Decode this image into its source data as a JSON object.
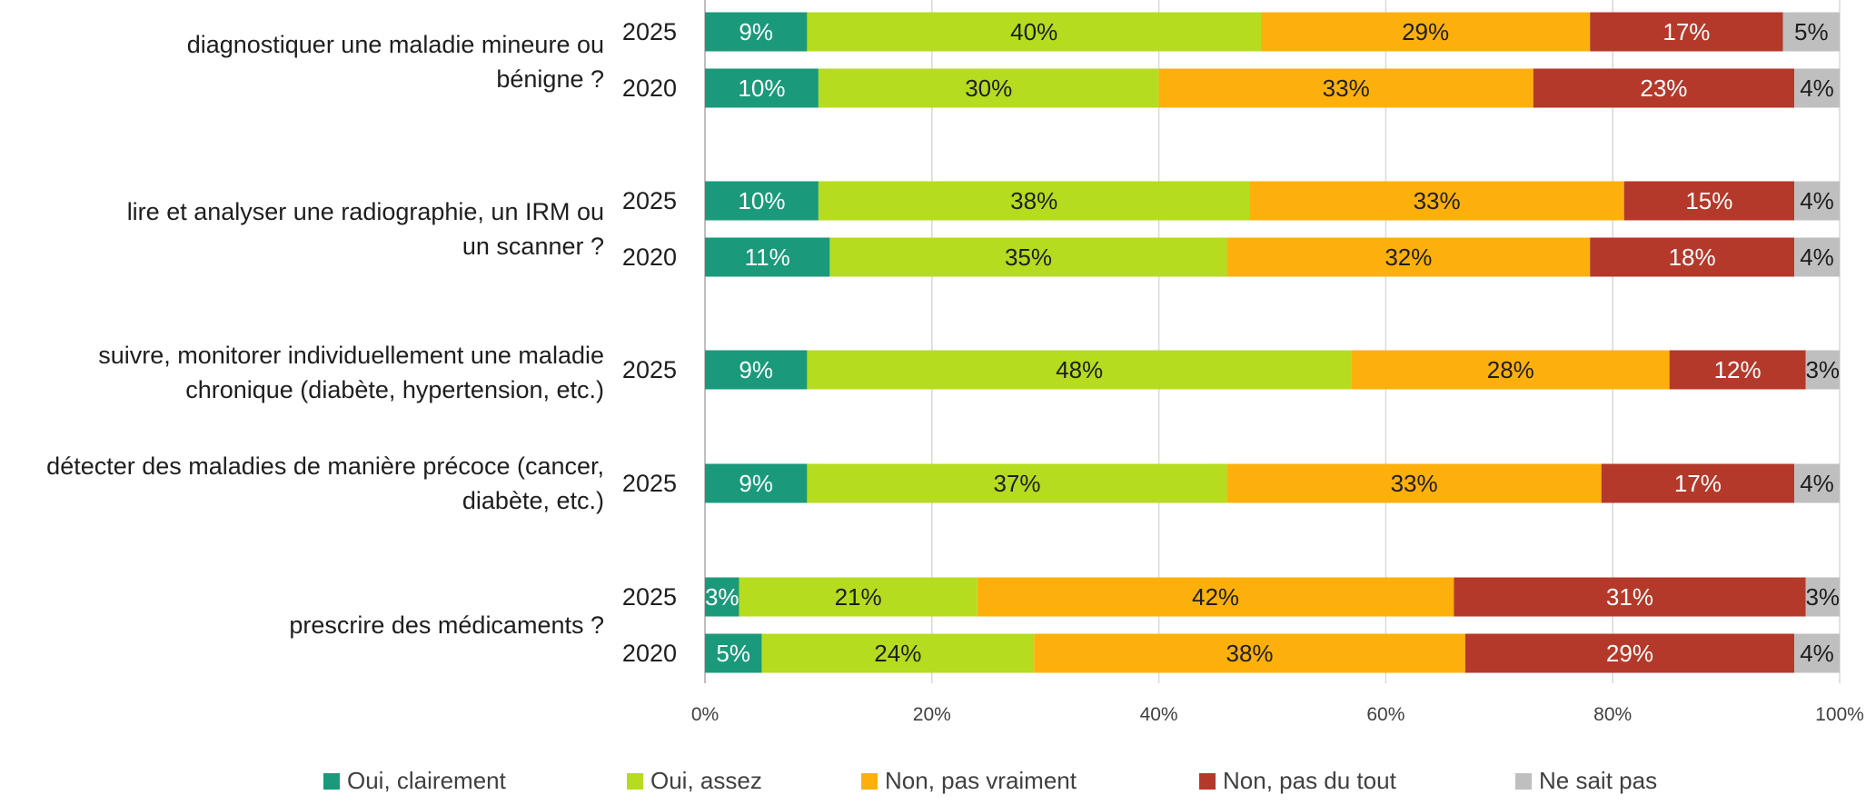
{
  "chart_data": {
    "type": "bar",
    "orientation": "horizontal",
    "stacked": true,
    "percent": true,
    "title": "",
    "xlabel": "",
    "ylabel": "",
    "xlim": [
      0,
      100
    ],
    "x_ticks": [
      "0%",
      "20%",
      "40%",
      "60%",
      "80%",
      "100%"
    ],
    "grid": "vertical",
    "legend_position": "bottom",
    "series": [
      {
        "name": "Oui, clairement",
        "color": "#1a9a7a",
        "label_color": "#ffffff"
      },
      {
        "name": "Oui, assez",
        "color": "#b5dc1f",
        "label_color": "#1e1e1e"
      },
      {
        "name": "Non, pas vraiment",
        "color": "#fdb00c",
        "label_color": "#1e1e1e"
      },
      {
        "name": "Non, pas du tout",
        "color": "#b5392a",
        "label_color": "#ffffff"
      },
      {
        "name": "Ne sait pas",
        "color": "#bfbfbf",
        "label_color": "#1e1e1e"
      }
    ],
    "groups": [
      {
        "label": "diagnostiquer une maladie mineure ou bénigne ?",
        "label_lines": [
          "diagnostiquer une maladie mineure ou",
          "bénigne ?"
        ],
        "bars": [
          {
            "year": "2025",
            "values": [
              9,
              40,
              29,
              17,
              5
            ]
          },
          {
            "year": "2020",
            "values": [
              10,
              30,
              33,
              23,
              4
            ]
          }
        ]
      },
      {
        "label": "lire et analyser une radiographie, un IRM ou un scanner ?",
        "label_lines": [
          "lire et analyser une radiographie, un IRM ou",
          "un scanner ?"
        ],
        "bars": [
          {
            "year": "2025",
            "values": [
              10,
              38,
              33,
              15,
              4
            ]
          },
          {
            "year": "2020",
            "values": [
              11,
              35,
              32,
              18,
              4
            ]
          }
        ]
      },
      {
        "label": "suivre, monitorer individuellement une maladie chronique (diabète, hypertension, etc.)",
        "label_lines": [
          "suivre, monitorer individuellement une maladie",
          "chronique (diabète, hypertension, etc.)"
        ],
        "bars": [
          {
            "year": "2025",
            "values": [
              9,
              48,
              28,
              12,
              3
            ]
          }
        ]
      },
      {
        "label": "détecter des maladies de manière précoce (cancer, diabète, etc.)",
        "label_lines": [
          "détecter des maladies de manière précoce (cancer,",
          "diabète, etc.)"
        ],
        "bars": [
          {
            "year": "2025",
            "values": [
              9,
              37,
              33,
              17,
              4
            ]
          }
        ]
      },
      {
        "label": "prescrire des médicaments ?",
        "label_lines": [
          "prescrire des médicaments ?"
        ],
        "bars": [
          {
            "year": "2025",
            "values": [
              3,
              21,
              42,
              31,
              3
            ]
          },
          {
            "year": "2020",
            "values": [
              5,
              24,
              38,
              29,
              4
            ]
          }
        ]
      }
    ]
  }
}
